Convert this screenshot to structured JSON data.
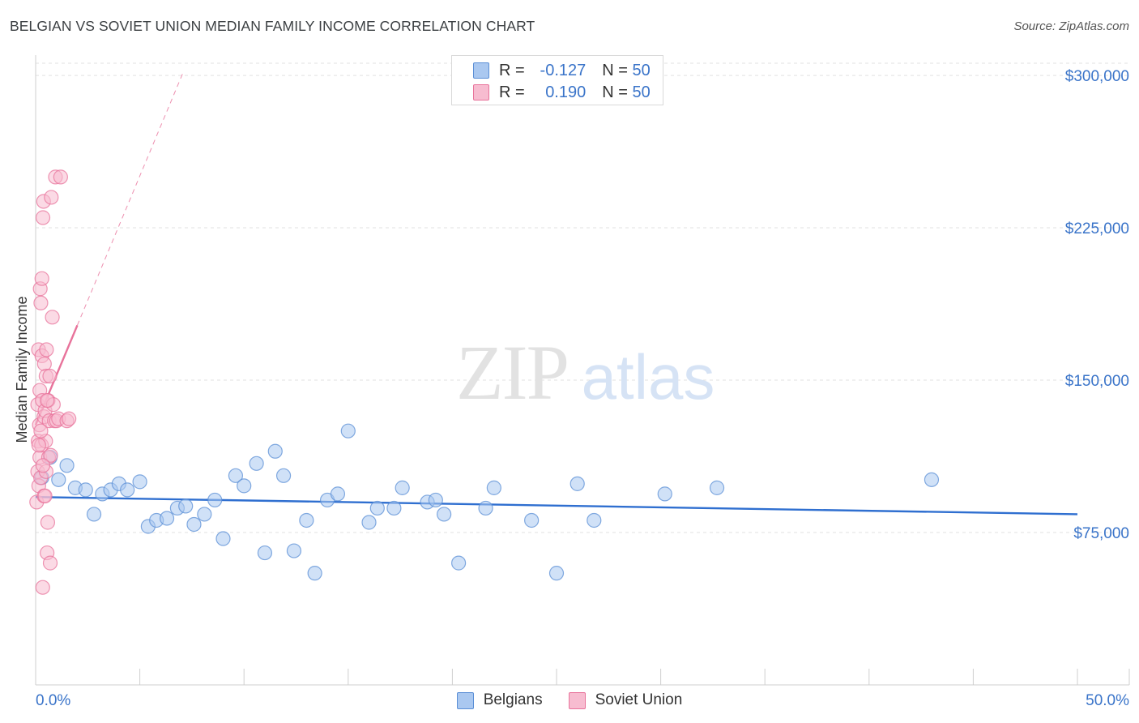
{
  "header": {
    "title": "BELGIAN VS SOVIET UNION MEDIAN FAMILY INCOME CORRELATION CHART",
    "source": "Source: ZipAtlas.com"
  },
  "legend": {
    "rows": [
      {
        "r_label": "R =",
        "r_value": "-0.127",
        "n_label": "N =",
        "n_value": "50",
        "color": "#aac8f0",
        "border": "#5b8fd6"
      },
      {
        "r_label": "R =",
        "r_value": "0.190",
        "n_label": "N =",
        "n_value": "50",
        "color": "#f7bcd0",
        "border": "#e8739b"
      }
    ]
  },
  "bottom_legend": [
    {
      "label": "Belgians",
      "color": "#aac8f0",
      "border": "#5b8fd6"
    },
    {
      "label": "Soviet Union",
      "color": "#f7bcd0",
      "border": "#e8739b"
    }
  ],
  "watermark": {
    "zip": "ZIP",
    "atlas": "atlas"
  },
  "chart_data": {
    "type": "scatter",
    "title": "BELGIAN VS SOVIET UNION MEDIAN FAMILY INCOME CORRELATION CHART",
    "xlabel": "",
    "ylabel": "Median Family Income",
    "xlim": [
      0,
      50
    ],
    "ylim": [
      0,
      310000
    ],
    "x_tick_labels": [
      "0.0%",
      "50.0%"
    ],
    "y_ticks": [
      75000,
      150000,
      225000,
      300000
    ],
    "y_tick_labels": [
      "$75,000",
      "$150,000",
      "$225,000",
      "$300,000"
    ],
    "grid": true,
    "series": [
      {
        "name": "Belgians",
        "color": "#5b8fd6",
        "fill": "#aac8f0",
        "x": [
          0.3,
          0.7,
          1.1,
          1.5,
          1.9,
          2.4,
          2.8,
          3.2,
          3.6,
          4.0,
          4.4,
          5.0,
          5.4,
          5.8,
          6.3,
          6.8,
          7.2,
          7.6,
          8.1,
          8.6,
          9.0,
          9.6,
          10.0,
          10.6,
          11.0,
          11.5,
          11.9,
          12.4,
          13.0,
          13.4,
          14.0,
          14.5,
          15.0,
          16.0,
          16.4,
          17.2,
          17.6,
          18.8,
          19.2,
          19.6,
          20.3,
          21.6,
          22.0,
          23.8,
          25.0,
          26.0,
          26.8,
          30.2,
          32.7,
          43.0
        ],
        "y": [
          102000,
          112000,
          101000,
          108000,
          97000,
          96000,
          84000,
          94000,
          96000,
          99000,
          96000,
          100000,
          78000,
          81000,
          82000,
          87000,
          88000,
          79000,
          84000,
          91000,
          72000,
          103000,
          98000,
          109000,
          65000,
          115000,
          103000,
          66000,
          81000,
          55000,
          91000,
          94000,
          125000,
          80000,
          87000,
          87000,
          97000,
          90000,
          91000,
          84000,
          60000,
          87000,
          97000,
          81000,
          55000,
          99000,
          81000,
          94000,
          97000,
          101000
        ]
      },
      {
        "name": "Soviet Union",
        "color": "#e8739b",
        "fill": "#f7bcd0",
        "x": [
          0.05,
          0.1,
          0.1,
          0.12,
          0.14,
          0.15,
          0.18,
          0.2,
          0.2,
          0.22,
          0.24,
          0.25,
          0.28,
          0.3,
          0.3,
          0.32,
          0.34,
          0.35,
          0.38,
          0.4,
          0.4,
          0.42,
          0.45,
          0.48,
          0.5,
          0.5,
          0.52,
          0.55,
          0.58,
          0.6,
          0.62,
          0.65,
          0.68,
          0.7,
          0.72,
          0.75,
          0.8,
          0.85,
          0.9,
          0.95,
          1.0,
          1.1,
          1.2,
          1.5,
          1.6,
          0.35,
          0.25,
          0.15,
          0.45,
          0.55
        ],
        "y": [
          90000,
          105000,
          138000,
          120000,
          165000,
          98000,
          128000,
          145000,
          112000,
          195000,
          102000,
          188000,
          118000,
          200000,
          162000,
          140000,
          48000,
          230000,
          238000,
          132000,
          93000,
          158000,
          135000,
          120000,
          152000,
          105000,
          165000,
          65000,
          80000,
          140000,
          112000,
          130000,
          152000,
          60000,
          113000,
          240000,
          181000,
          138000,
          130000,
          250000,
          130000,
          131000,
          250000,
          130000,
          131000,
          108000,
          125000,
          118000,
          93000,
          140000
        ]
      }
    ],
    "trend_lines": [
      {
        "series": "Belgians",
        "x": [
          0,
          50
        ],
        "y": [
          92500,
          84000
        ],
        "style": "solid"
      },
      {
        "series": "Soviet Union",
        "x": [
          0,
          2.0
        ],
        "y": [
          128000,
          177000
        ],
        "style": "solid"
      },
      {
        "series": "Soviet Union",
        "x": [
          2.0,
          7.1
        ],
        "y": [
          177000,
          302000
        ],
        "style": "dashed"
      }
    ]
  }
}
